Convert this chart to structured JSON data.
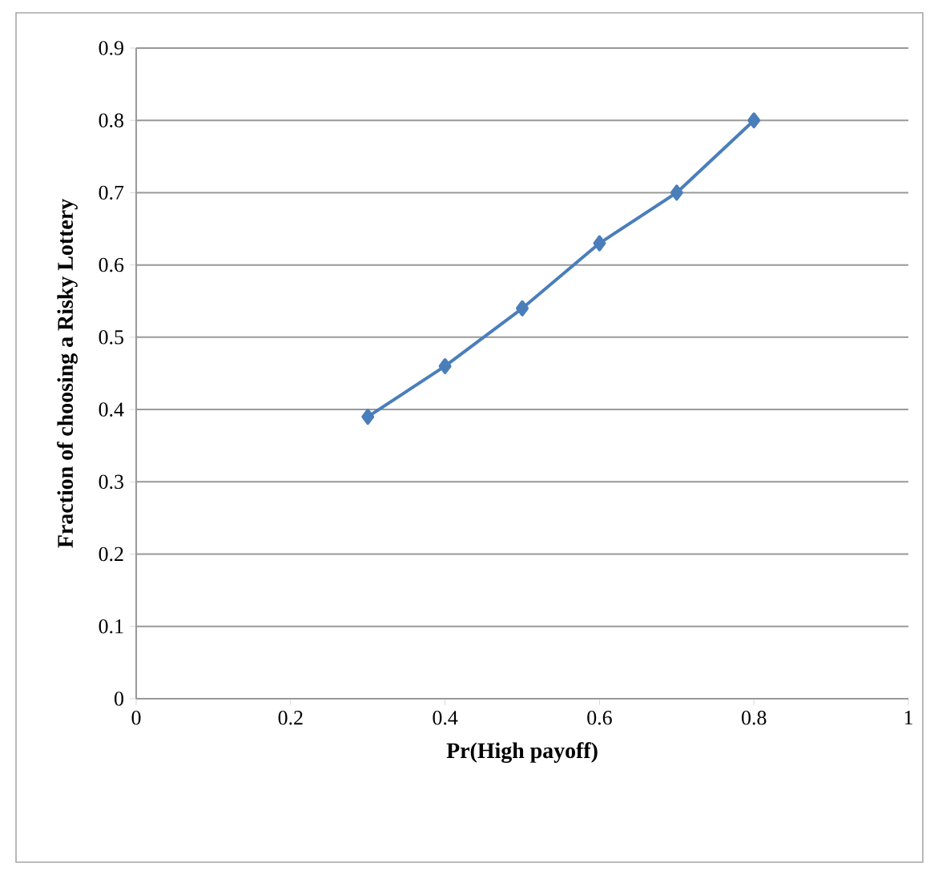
{
  "chart_data": {
    "type": "line",
    "xlabel": "Pr(High payoff)",
    "ylabel": "Fraction of choosing a Risky  Lottery",
    "x": [
      0.3,
      0.4,
      0.5,
      0.6,
      0.7,
      0.8
    ],
    "series": [
      {
        "color": "#4a7ebb",
        "values": [
          0.39,
          0.46,
          0.54,
          0.63,
          0.7,
          0.8
        ]
      }
    ],
    "xlim": [
      0,
      1
    ],
    "xticks": [
      0,
      0.2,
      0.4,
      0.6,
      0.8,
      1
    ],
    "ylim": [
      0,
      0.9
    ],
    "yticks": [
      0,
      0.1,
      0.2,
      0.3,
      0.4,
      0.5,
      0.6,
      0.7,
      0.8,
      0.9
    ],
    "grid": "y",
    "marker": "diamond",
    "line_style": "solid"
  }
}
